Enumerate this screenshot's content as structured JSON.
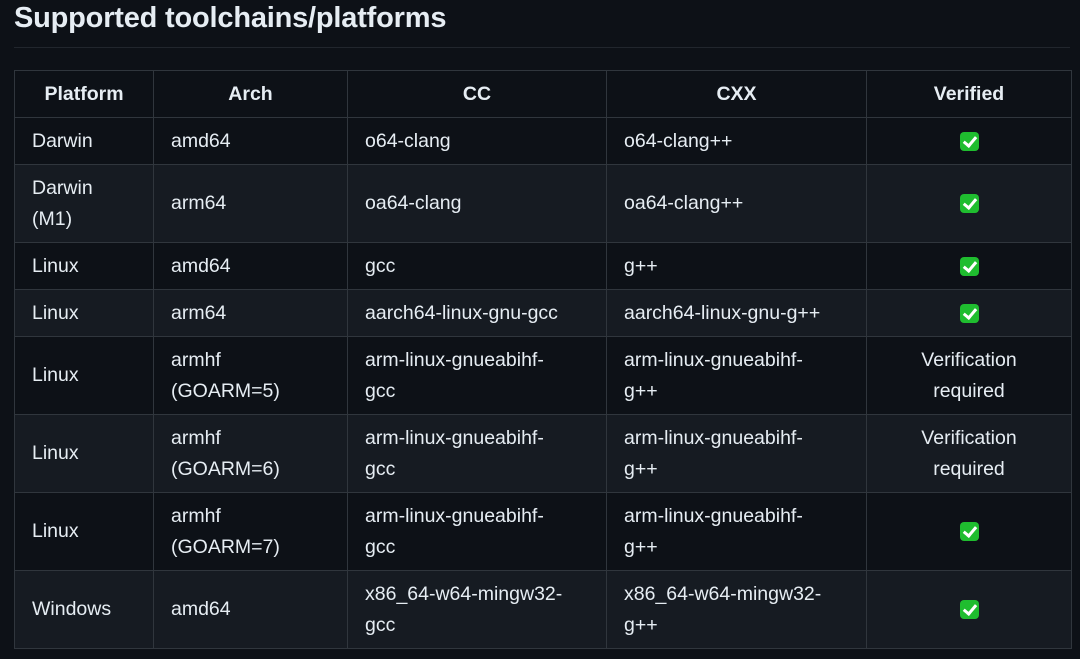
{
  "title": "Supported toolchains/platforms",
  "colors": {
    "background": "#0d1117",
    "row_alt": "#161b22",
    "border": "#30363d",
    "check": "#1fbd2f"
  },
  "table": {
    "headers": [
      "Platform",
      "Arch",
      "CC",
      "CXX",
      "Verified"
    ],
    "rows": [
      {
        "platform": "Darwin",
        "arch": "amd64",
        "cc": "o64-clang",
        "cxx": "o64-clang++",
        "verified": "check-icon"
      },
      {
        "platform": "Darwin (M1)",
        "arch": "arm64",
        "cc": "oa64-clang",
        "cxx": "oa64-clang++",
        "verified": "check-icon"
      },
      {
        "platform": "Linux",
        "arch": "amd64",
        "cc": "gcc",
        "cxx": "g++",
        "verified": "check-icon"
      },
      {
        "platform": "Linux",
        "arch": "arm64",
        "cc": "aarch64-linux-gnu-gcc",
        "cxx": "aarch64-linux-gnu-g++",
        "verified": "check-icon"
      },
      {
        "platform": "Linux",
        "arch": "armhf (GOARM=5)",
        "cc": "arm-linux-gnueabihf-gcc",
        "cxx": "arm-linux-gnueabihf-g++",
        "verified": "Verification required"
      },
      {
        "platform": "Linux",
        "arch": "armhf (GOARM=6)",
        "cc": "arm-linux-gnueabihf-gcc",
        "cxx": "arm-linux-gnueabihf-g++",
        "verified": "Verification required"
      },
      {
        "platform": "Linux",
        "arch": "armhf (GOARM=7)",
        "cc": "arm-linux-gnueabihf-gcc",
        "cxx": "arm-linux-gnueabihf-g++",
        "verified": "check-icon"
      },
      {
        "platform": "Windows",
        "arch": "amd64",
        "cc": "x86_64-w64-mingw32-gcc",
        "cxx": "x86_64-w64-mingw32-g++",
        "verified": "check-icon"
      }
    ]
  }
}
